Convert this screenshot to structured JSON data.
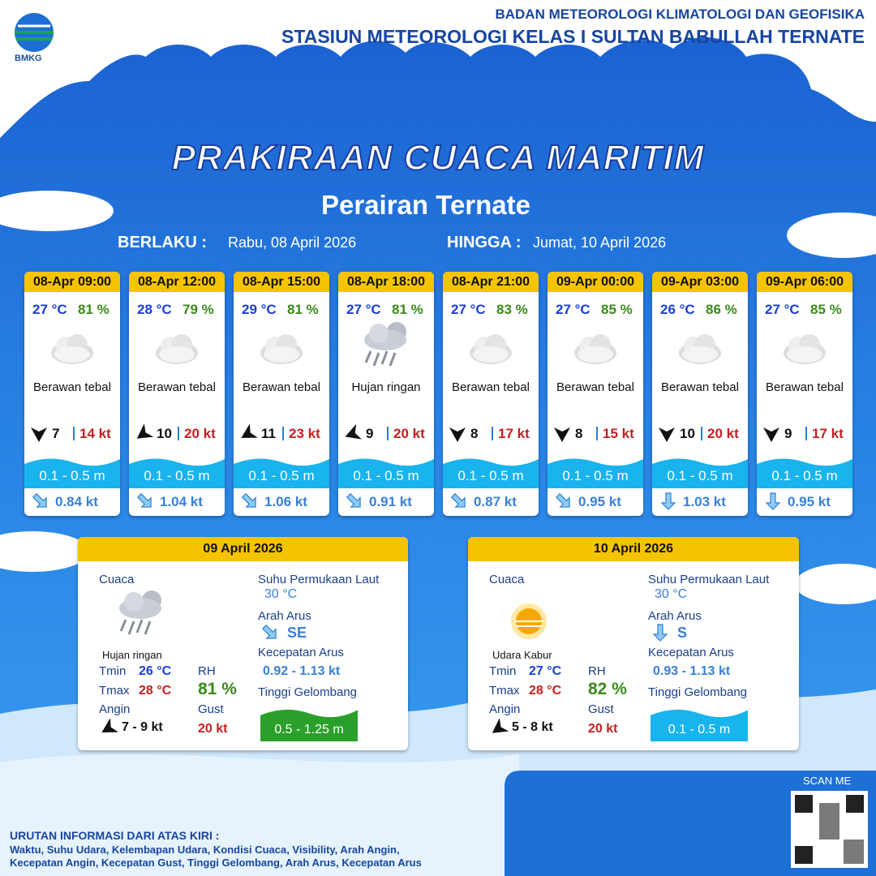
{
  "header": {
    "logo": "BMKG",
    "agency": "BADAN METEOROLOGI KLIMATOLOGI DAN GEOFISIKA",
    "station": "STASIUN METEOROLOGI KELAS I SULTAN BABULLAH TERNATE"
  },
  "title": "PRAKIRAAN CUACA MARITIM",
  "subtitle": "Perairan Ternate",
  "validity": {
    "from_label": "BERLAKU :",
    "from": "Rabu, 08 April 2026",
    "to_label": "HINGGA :",
    "to": "Jumat, 10 April 2026"
  },
  "forecasts": [
    {
      "time": "08-Apr 09:00",
      "temp": "27 °C",
      "rh": "81 %",
      "weather": "Berawan tebal",
      "wind": "7",
      "gust": "14 kt",
      "wave": "0.1 - 0.5 m",
      "current": "0.84 kt"
    },
    {
      "time": "08-Apr 12:00",
      "temp": "28 °C",
      "rh": "79 %",
      "weather": "Berawan tebal",
      "wind": "10",
      "gust": "20 kt",
      "wave": "0.1 - 0.5 m",
      "current": "1.04 kt"
    },
    {
      "time": "08-Apr 15:00",
      "temp": "29 °C",
      "rh": "81 %",
      "weather": "Berawan tebal",
      "wind": "11",
      "gust": "23 kt",
      "wave": "0.1 - 0.5 m",
      "current": "1.06 kt"
    },
    {
      "time": "08-Apr 18:00",
      "temp": "27 °C",
      "rh": "81 %",
      "weather": "Hujan ringan",
      "wind": "9",
      "gust": "20 kt",
      "wave": "0.1 - 0.5 m",
      "current": "0.91 kt"
    },
    {
      "time": "08-Apr 21:00",
      "temp": "27 °C",
      "rh": "83 %",
      "weather": "Berawan tebal",
      "wind": "8",
      "gust": "17 kt",
      "wave": "0.1 - 0.5 m",
      "current": "0.87 kt"
    },
    {
      "time": "09-Apr 00:00",
      "temp": "27 °C",
      "rh": "85 %",
      "weather": "Berawan tebal",
      "wind": "8",
      "gust": "15 kt",
      "wave": "0.1 - 0.5 m",
      "current": "0.95 kt"
    },
    {
      "time": "09-Apr 03:00",
      "temp": "26 °C",
      "rh": "86 %",
      "weather": "Berawan tebal",
      "wind": "10",
      "gust": "20 kt",
      "wave": "0.1 - 0.5 m",
      "current": "1.03 kt"
    },
    {
      "time": "09-Apr 06:00",
      "temp": "27 °C",
      "rh": "85 %",
      "weather": "Berawan tebal",
      "wind": "9",
      "gust": "17 kt",
      "wave": "0.1 - 0.5 m",
      "current": "0.95 kt"
    }
  ],
  "summary_labels": {
    "cuaca": "Cuaca",
    "tmin": "Tmin",
    "tmax": "Tmax",
    "angin": "Angin",
    "rh": "RH",
    "gust": "Gust",
    "sst": "Suhu Permukaan Laut",
    "current_dir": "Arah Arus",
    "current_speed": "Kecepatan Arus",
    "wave": "Tinggi Gelombang"
  },
  "summaries": [
    {
      "date": "09 April 2026",
      "weather": "Hujan ringan",
      "tmin": "26 °C",
      "tmax": "28 °C",
      "wind": "7 - 9 kt",
      "rh": "81 %",
      "gust": "20 kt",
      "sst": "30 °C",
      "current_dir": "SE",
      "current_speed": "0.92 - 1.13 kt",
      "wave": "0.5 - 1.25 m"
    },
    {
      "date": "10 April 2026",
      "weather": "Udara Kabur",
      "tmin": "27 °C",
      "tmax": "28 °C",
      "wind": "5 - 8 kt",
      "rh": "82 %",
      "gust": "20 kt",
      "sst": "30 °C",
      "current_dir": "S",
      "current_speed": "0.93 - 1.13 kt",
      "wave": "0.1 - 0.5 m"
    }
  ],
  "footer": {
    "scan": "SCAN ME",
    "note_title": "URUTAN INFORMASI DARI ATAS KIRI :",
    "note_lines": [
      "Waktu, Suhu Udara, Kelembapan Udara, Kondisi Cuaca, Visibility, Arah Angin,",
      "Kecepatan Angin, Kecepatan Gust, Tinggi Gelombang, Arah Arus, Kecepatan Arus"
    ]
  }
}
